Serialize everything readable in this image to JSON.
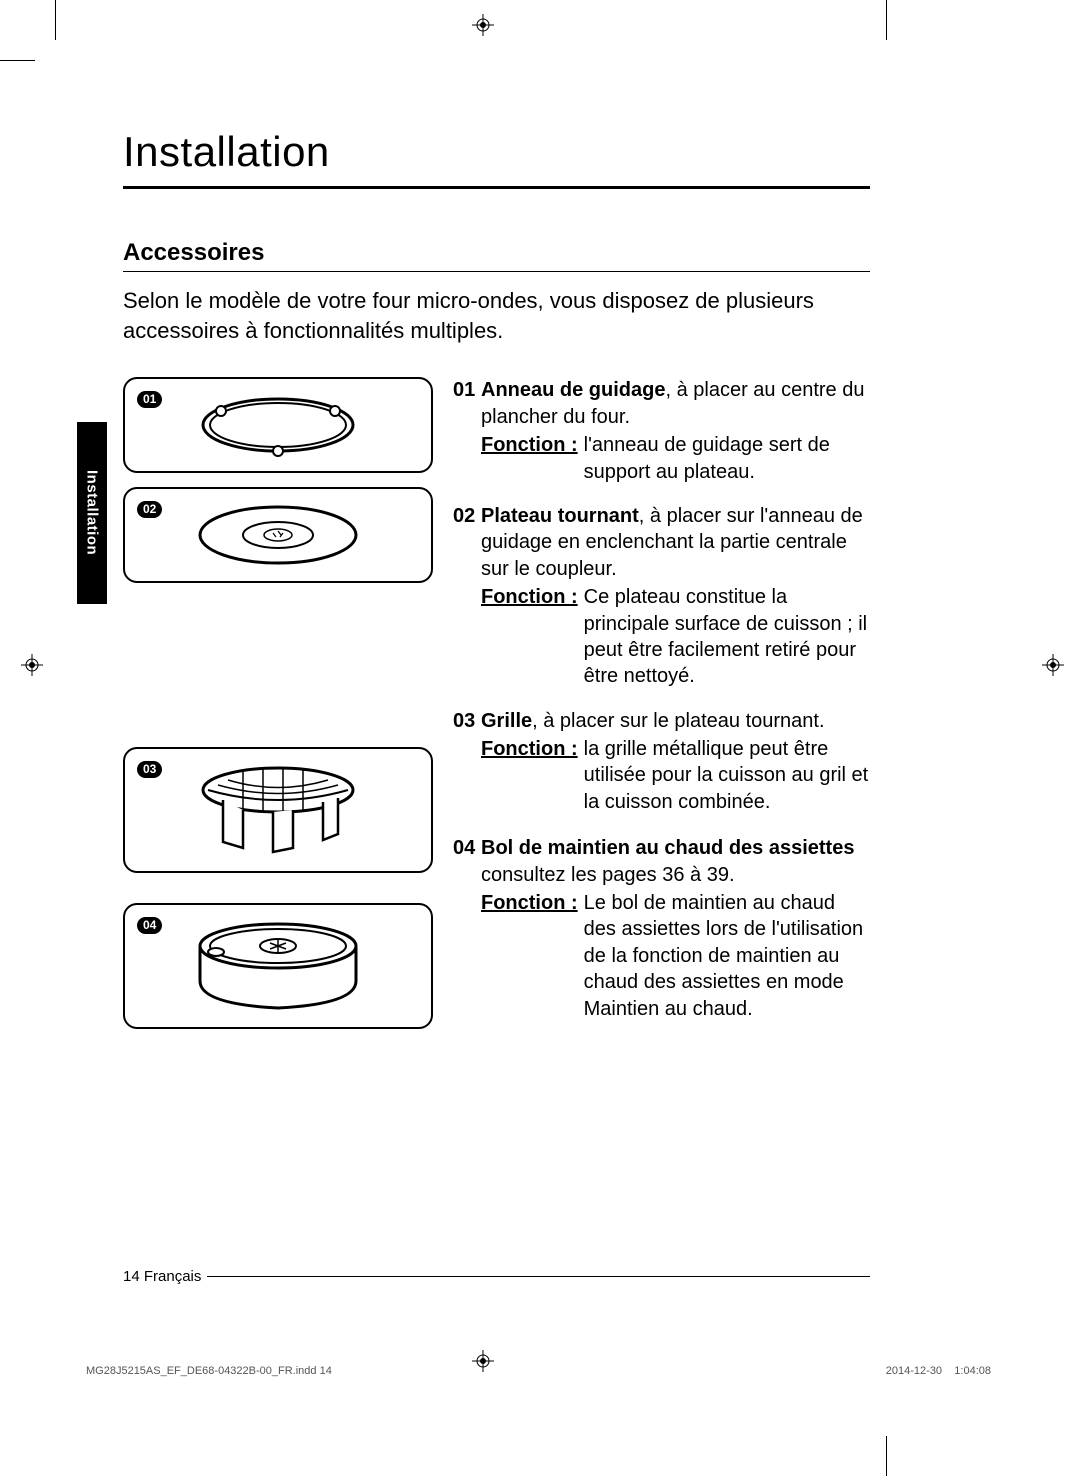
{
  "title": "Installation",
  "section_heading": "Accessoires",
  "intro": "Selon le modèle de votre four micro-ondes, vous disposez de plusieurs accessoires à fonctionnalités multiples.",
  "side_tab": "Installation",
  "function_label": "Fonction :",
  "items": [
    {
      "num": "01",
      "badge": "01",
      "title_bold": "Anneau de guidage",
      "title_rest": ", à placer au centre du plancher du four.",
      "function": "l'anneau de guidage sert de support au plateau."
    },
    {
      "num": "02",
      "badge": "02",
      "title_bold": "Plateau tournant",
      "title_rest": ", à placer sur l'anneau de guidage en enclenchant la partie centrale sur le coupleur.",
      "function": "Ce plateau constitue la principale surface de cuisson ; il peut être facilement retiré pour être nettoyé."
    },
    {
      "num": "03",
      "badge": "03",
      "title_bold": "Grille",
      "title_rest": ", à placer sur le plateau tournant.",
      "function": "la grille métallique peut être utilisée pour la cuisson au gril et la cuisson combinée."
    },
    {
      "num": "04",
      "badge": "04",
      "title_bold": "Bol de maintien au chaud des assiettes",
      "title_rest": " consultez les pages 36 à 39.",
      "function": "Le bol de maintien au chaud des assiettes lors de l'utilisation de la fonction de maintien au chaud des assiettes en mode Maintien au chaud."
    }
  ],
  "footer": {
    "page_num": "14",
    "lang": "Français"
  },
  "imprint": {
    "file": "MG28J5215AS_EF_DE68-04322B-00_FR.indd   14",
    "date": "2014-12-30",
    "time": "1:04:08"
  },
  "figure_heights": {
    "f1": 96,
    "f2": 96,
    "f3": 126,
    "f4": 126
  },
  "right_margins": {
    "m1": 0,
    "m2": 0,
    "m3": 164,
    "m4": 164
  }
}
